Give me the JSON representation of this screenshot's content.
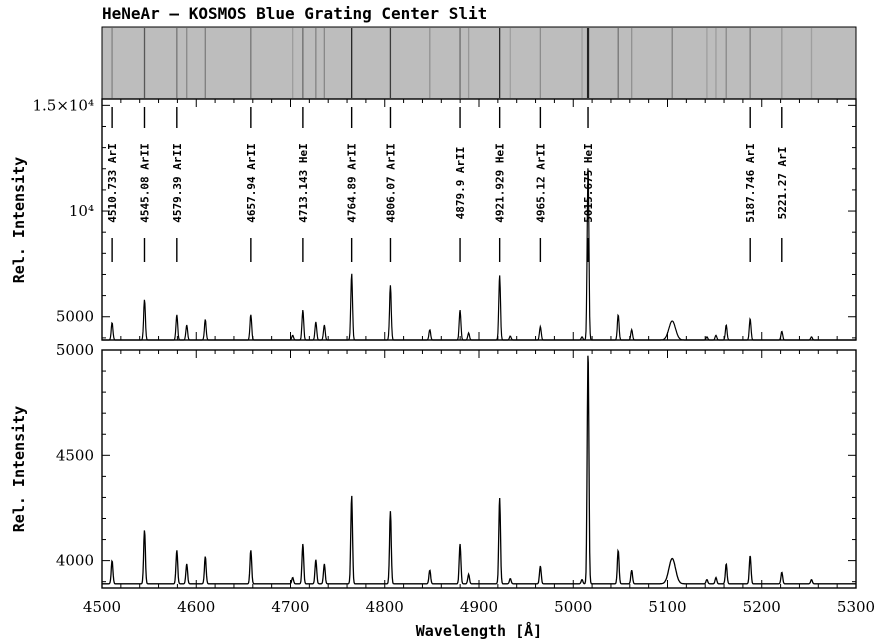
{
  "title": "HeNeAr – KOSMOS Blue Grating Center Slit",
  "colors": {
    "strip_bg": "#bdbdbd",
    "line": "#000000",
    "spectrum": "#000000"
  },
  "chart_data": [
    {
      "type": "line",
      "panel": "upper",
      "ylabel": "Rel. Intensity",
      "xlim": [
        4500,
        5300
      ],
      "ylim": [
        3900,
        15300
      ],
      "yticks": [
        {
          "value": 5000,
          "label": "5000"
        },
        {
          "value": 10000,
          "label": "10⁴"
        },
        {
          "value": 15000,
          "label": "1.5×10⁴"
        }
      ],
      "line_ids": [
        {
          "wavelength": 4510.733,
          "label": "4510.733 ArI"
        },
        {
          "wavelength": 4545.08,
          "label": "4545.08 ArII"
        },
        {
          "wavelength": 4579.39,
          "label": "4579.39 ArII"
        },
        {
          "wavelength": 4657.94,
          "label": "4657.94 ArII"
        },
        {
          "wavelength": 4713.143,
          "label": "4713.143 HeI"
        },
        {
          "wavelength": 4764.89,
          "label": "4764.89 ArII"
        },
        {
          "wavelength": 4806.07,
          "label": "4806.07 ArII"
        },
        {
          "wavelength": 4879.9,
          "label": "4879.9 ArII"
        },
        {
          "wavelength": 4921.929,
          "label": "4921.929 HeI"
        },
        {
          "wavelength": 4965.12,
          "label": "4965.12 ArII"
        },
        {
          "wavelength": 5015.675,
          "label": "5015.675 HeI"
        },
        {
          "wavelength": 5187.746,
          "label": "5187.746 ArI"
        },
        {
          "wavelength": 5221.27,
          "label": "5221.27 ArI"
        }
      ]
    },
    {
      "type": "line",
      "panel": "lower",
      "xlabel": "Wavelength [Å]",
      "ylabel": "Rel. Intensity",
      "xlim": [
        4500,
        5300
      ],
      "ylim": [
        3870,
        5000
      ],
      "xticks": [
        4500,
        4600,
        4700,
        4800,
        4900,
        5000,
        5100,
        5200,
        5300
      ],
      "yticks": [
        {
          "value": 4000,
          "label": "4000"
        },
        {
          "value": 4500,
          "label": "4500"
        },
        {
          "value": 5000,
          "label": "5000"
        }
      ],
      "continuum": 3890,
      "peaks": [
        {
          "x": 4510.7,
          "y": 4000
        },
        {
          "x": 4545.1,
          "y": 4145
        },
        {
          "x": 4579.4,
          "y": 4050
        },
        {
          "x": 4589.9,
          "y": 3985
        },
        {
          "x": 4609.6,
          "y": 4020
        },
        {
          "x": 4657.9,
          "y": 4050
        },
        {
          "x": 4702.3,
          "y": 3920
        },
        {
          "x": 4713.1,
          "y": 4080
        },
        {
          "x": 4726.9,
          "y": 4005
        },
        {
          "x": 4735.9,
          "y": 3985
        },
        {
          "x": 4764.9,
          "y": 4310
        },
        {
          "x": 4806.0,
          "y": 4235
        },
        {
          "x": 4847.8,
          "y": 3955
        },
        {
          "x": 4879.9,
          "y": 4080
        },
        {
          "x": 4889.0,
          "y": 3935
        },
        {
          "x": 4921.9,
          "y": 4300
        },
        {
          "x": 4933.2,
          "y": 3915
        },
        {
          "x": 4965.1,
          "y": 3975
        },
        {
          "x": 5009.3,
          "y": 3910
        },
        {
          "x": 5015.7,
          "y": 5000
        },
        {
          "x": 5047.7,
          "y": 4050
        },
        {
          "x": 5062.0,
          "y": 3955
        },
        {
          "x": 5105.0,
          "y": 4010
        },
        {
          "x": 5141.8,
          "y": 3910
        },
        {
          "x": 5151.4,
          "y": 3920
        },
        {
          "x": 5162.3,
          "y": 3985
        },
        {
          "x": 5187.7,
          "y": 4025
        },
        {
          "x": 5221.3,
          "y": 3945
        },
        {
          "x": 5252.8,
          "y": 3910
        }
      ]
    }
  ]
}
